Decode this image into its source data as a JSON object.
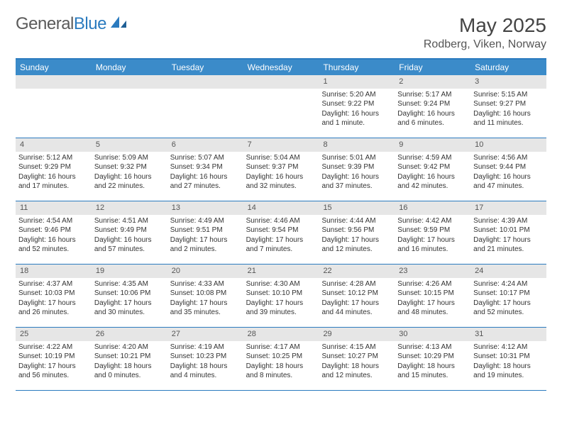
{
  "logo": {
    "word1": "General",
    "word2": "Blue"
  },
  "header": {
    "month_title": "May 2025",
    "location": "Rodberg, Viken, Norway"
  },
  "colors": {
    "brand_blue": "#2b7bbf",
    "header_bar": "#3b8bc9",
    "daynum_bg": "#e6e6e6",
    "text": "#333333",
    "title_text": "#444444",
    "logo_gray": "#5a5a5a"
  },
  "weekdays": [
    "Sunday",
    "Monday",
    "Tuesday",
    "Wednesday",
    "Thursday",
    "Friday",
    "Saturday"
  ],
  "weeks": [
    [
      {
        "n": "",
        "lines": []
      },
      {
        "n": "",
        "lines": []
      },
      {
        "n": "",
        "lines": []
      },
      {
        "n": "",
        "lines": []
      },
      {
        "n": "1",
        "lines": [
          "Sunrise: 5:20 AM",
          "Sunset: 9:22 PM",
          "Daylight: 16 hours",
          "and 1 minute."
        ]
      },
      {
        "n": "2",
        "lines": [
          "Sunrise: 5:17 AM",
          "Sunset: 9:24 PM",
          "Daylight: 16 hours",
          "and 6 minutes."
        ]
      },
      {
        "n": "3",
        "lines": [
          "Sunrise: 5:15 AM",
          "Sunset: 9:27 PM",
          "Daylight: 16 hours",
          "and 11 minutes."
        ]
      }
    ],
    [
      {
        "n": "4",
        "lines": [
          "Sunrise: 5:12 AM",
          "Sunset: 9:29 PM",
          "Daylight: 16 hours",
          "and 17 minutes."
        ]
      },
      {
        "n": "5",
        "lines": [
          "Sunrise: 5:09 AM",
          "Sunset: 9:32 PM",
          "Daylight: 16 hours",
          "and 22 minutes."
        ]
      },
      {
        "n": "6",
        "lines": [
          "Sunrise: 5:07 AM",
          "Sunset: 9:34 PM",
          "Daylight: 16 hours",
          "and 27 minutes."
        ]
      },
      {
        "n": "7",
        "lines": [
          "Sunrise: 5:04 AM",
          "Sunset: 9:37 PM",
          "Daylight: 16 hours",
          "and 32 minutes."
        ]
      },
      {
        "n": "8",
        "lines": [
          "Sunrise: 5:01 AM",
          "Sunset: 9:39 PM",
          "Daylight: 16 hours",
          "and 37 minutes."
        ]
      },
      {
        "n": "9",
        "lines": [
          "Sunrise: 4:59 AM",
          "Sunset: 9:42 PM",
          "Daylight: 16 hours",
          "and 42 minutes."
        ]
      },
      {
        "n": "10",
        "lines": [
          "Sunrise: 4:56 AM",
          "Sunset: 9:44 PM",
          "Daylight: 16 hours",
          "and 47 minutes."
        ]
      }
    ],
    [
      {
        "n": "11",
        "lines": [
          "Sunrise: 4:54 AM",
          "Sunset: 9:46 PM",
          "Daylight: 16 hours",
          "and 52 minutes."
        ]
      },
      {
        "n": "12",
        "lines": [
          "Sunrise: 4:51 AM",
          "Sunset: 9:49 PM",
          "Daylight: 16 hours",
          "and 57 minutes."
        ]
      },
      {
        "n": "13",
        "lines": [
          "Sunrise: 4:49 AM",
          "Sunset: 9:51 PM",
          "Daylight: 17 hours",
          "and 2 minutes."
        ]
      },
      {
        "n": "14",
        "lines": [
          "Sunrise: 4:46 AM",
          "Sunset: 9:54 PM",
          "Daylight: 17 hours",
          "and 7 minutes."
        ]
      },
      {
        "n": "15",
        "lines": [
          "Sunrise: 4:44 AM",
          "Sunset: 9:56 PM",
          "Daylight: 17 hours",
          "and 12 minutes."
        ]
      },
      {
        "n": "16",
        "lines": [
          "Sunrise: 4:42 AM",
          "Sunset: 9:59 PM",
          "Daylight: 17 hours",
          "and 16 minutes."
        ]
      },
      {
        "n": "17",
        "lines": [
          "Sunrise: 4:39 AM",
          "Sunset: 10:01 PM",
          "Daylight: 17 hours",
          "and 21 minutes."
        ]
      }
    ],
    [
      {
        "n": "18",
        "lines": [
          "Sunrise: 4:37 AM",
          "Sunset: 10:03 PM",
          "Daylight: 17 hours",
          "and 26 minutes."
        ]
      },
      {
        "n": "19",
        "lines": [
          "Sunrise: 4:35 AM",
          "Sunset: 10:06 PM",
          "Daylight: 17 hours",
          "and 30 minutes."
        ]
      },
      {
        "n": "20",
        "lines": [
          "Sunrise: 4:33 AM",
          "Sunset: 10:08 PM",
          "Daylight: 17 hours",
          "and 35 minutes."
        ]
      },
      {
        "n": "21",
        "lines": [
          "Sunrise: 4:30 AM",
          "Sunset: 10:10 PM",
          "Daylight: 17 hours",
          "and 39 minutes."
        ]
      },
      {
        "n": "22",
        "lines": [
          "Sunrise: 4:28 AM",
          "Sunset: 10:12 PM",
          "Daylight: 17 hours",
          "and 44 minutes."
        ]
      },
      {
        "n": "23",
        "lines": [
          "Sunrise: 4:26 AM",
          "Sunset: 10:15 PM",
          "Daylight: 17 hours",
          "and 48 minutes."
        ]
      },
      {
        "n": "24",
        "lines": [
          "Sunrise: 4:24 AM",
          "Sunset: 10:17 PM",
          "Daylight: 17 hours",
          "and 52 minutes."
        ]
      }
    ],
    [
      {
        "n": "25",
        "lines": [
          "Sunrise: 4:22 AM",
          "Sunset: 10:19 PM",
          "Daylight: 17 hours",
          "and 56 minutes."
        ]
      },
      {
        "n": "26",
        "lines": [
          "Sunrise: 4:20 AM",
          "Sunset: 10:21 PM",
          "Daylight: 18 hours",
          "and 0 minutes."
        ]
      },
      {
        "n": "27",
        "lines": [
          "Sunrise: 4:19 AM",
          "Sunset: 10:23 PM",
          "Daylight: 18 hours",
          "and 4 minutes."
        ]
      },
      {
        "n": "28",
        "lines": [
          "Sunrise: 4:17 AM",
          "Sunset: 10:25 PM",
          "Daylight: 18 hours",
          "and 8 minutes."
        ]
      },
      {
        "n": "29",
        "lines": [
          "Sunrise: 4:15 AM",
          "Sunset: 10:27 PM",
          "Daylight: 18 hours",
          "and 12 minutes."
        ]
      },
      {
        "n": "30",
        "lines": [
          "Sunrise: 4:13 AM",
          "Sunset: 10:29 PM",
          "Daylight: 18 hours",
          "and 15 minutes."
        ]
      },
      {
        "n": "31",
        "lines": [
          "Sunrise: 4:12 AM",
          "Sunset: 10:31 PM",
          "Daylight: 18 hours",
          "and 19 minutes."
        ]
      }
    ]
  ]
}
